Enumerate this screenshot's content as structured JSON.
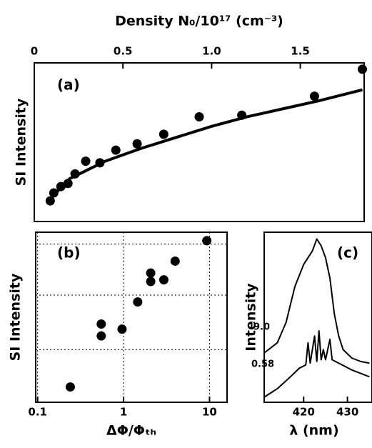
{
  "chart_data": [
    {
      "type": "scatter",
      "panel_label": "(a)",
      "x_label": "Density N₀/10¹⁷ (cm⁻³)",
      "y_label": "SI Intensity",
      "xaxis_position": "top",
      "xlim": [
        0,
        1.86
      ],
      "ylim": [
        0,
        10
      ],
      "xticks": [
        0,
        0.5,
        {
          "value": 1,
          "label": "1.0"
        },
        1.5
      ],
      "series": [
        {
          "type": "scatter",
          "color": "#000000",
          "x": [
            0.09,
            0.11,
            0.15,
            0.19,
            0.23,
            0.29,
            0.37,
            0.46,
            0.58,
            0.73,
            0.93,
            1.17,
            1.58,
            1.85
          ],
          "values": [
            1.3,
            1.8,
            2.2,
            2.4,
            3.0,
            3.8,
            3.7,
            4.5,
            4.9,
            5.5,
            6.6,
            6.7,
            7.9,
            9.6
          ]
        },
        {
          "type": "line",
          "color": "#000000",
          "x": [
            0.07,
            0.2,
            0.4,
            0.6,
            0.8,
            1.0,
            1.2,
            1.4,
            1.6,
            1.85
          ],
          "values": [
            1.2,
            2.7,
            3.8,
            4.6,
            5.3,
            6.0,
            6.6,
            7.1,
            7.6,
            8.3
          ]
        }
      ]
    },
    {
      "type": "scatter",
      "panel_label": "(b)",
      "x_label": "ΔΦ/Φₜₕ",
      "y_label": "SI Intensity",
      "xscale": "log",
      "grid": true,
      "xlim": [
        0.095,
        16
      ],
      "ylim": [
        0,
        10
      ],
      "xticks": [
        0.1,
        1,
        10
      ],
      "ygrid": [
        3.1,
        6.3,
        9.3
      ],
      "series": [
        {
          "type": "scatter",
          "color": "#000000",
          "x": [
            0.24,
            0.55,
            0.55,
            0.96,
            1.46,
            2.07,
            2.07,
            2.94,
            3.98,
            9.3
          ],
          "values": [
            0.9,
            4.6,
            3.9,
            4.3,
            5.9,
            7.6,
            7.1,
            7.2,
            8.3,
            9.5
          ]
        }
      ]
    },
    {
      "type": "line",
      "panel_label": "(c)",
      "x_label": "λ (nm)",
      "y_label": "Intensity",
      "xlim": [
        411,
        435.6
      ],
      "ylim": [
        0,
        10
      ],
      "xticks": [
        420,
        430
      ],
      "series": [
        {
          "name": "9.0",
          "color": "#000000",
          "x": [
            411,
            414,
            416,
            418,
            420,
            422,
            423,
            424,
            425,
            426,
            427,
            428,
            429,
            431,
            433,
            435
          ],
          "values": [
            2.9,
            3.5,
            4.7,
            6.8,
            8.1,
            8.9,
            9.6,
            9.2,
            8.5,
            7.3,
            5.2,
            3.9,
            3.1,
            2.6,
            2.4,
            2.3
          ]
        },
        {
          "name": "0.58",
          "color": "#000000",
          "x": [
            411,
            414,
            417,
            419,
            420.5,
            421,
            421.5,
            422.5,
            423,
            423.5,
            424,
            424.5,
            425,
            426,
            426.5,
            428,
            431,
            435
          ],
          "values": [
            0.3,
            0.8,
            1.5,
            2.0,
            2.2,
            3.5,
            2.3,
            3.9,
            2.4,
            4.2,
            2.5,
            3.1,
            2.5,
            3.7,
            2.5,
            2.3,
            1.9,
            1.5
          ]
        }
      ]
    }
  ]
}
